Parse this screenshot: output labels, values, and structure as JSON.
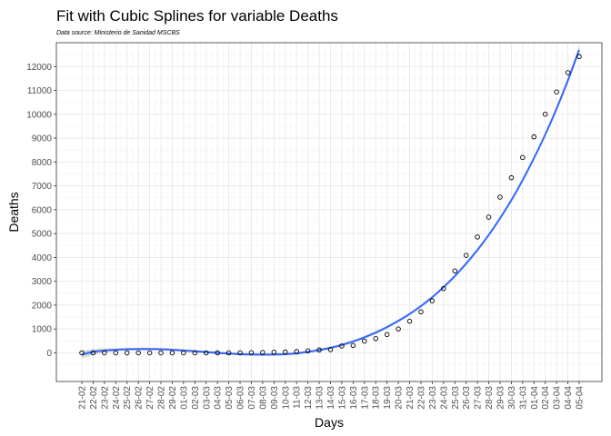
{
  "chart_data": {
    "type": "scatter",
    "title": "Fit with Cubic Splines for variable Deaths",
    "subtitle": "Data source: Ministerio de Sanidad MSCBS",
    "xlabel": "Days",
    "ylabel": "Deaths",
    "grid": true,
    "ylim": [
      -1200,
      13000
    ],
    "yticks": [
      0,
      1000,
      2000,
      3000,
      4000,
      5000,
      6000,
      7000,
      8000,
      9000,
      10000,
      11000,
      12000
    ],
    "categories": [
      "21-02",
      "22-02",
      "23-02",
      "24-02",
      "25-02",
      "26-02",
      "27-02",
      "28-02",
      "29-02",
      "01-03",
      "02-03",
      "03-03",
      "04-03",
      "05-03",
      "06-03",
      "07-03",
      "08-03",
      "09-03",
      "10-03",
      "11-03",
      "12-03",
      "13-03",
      "14-03",
      "15-03",
      "16-03",
      "17-03",
      "18-03",
      "19-03",
      "20-03",
      "21-03",
      "22-03",
      "23-03",
      "24-03",
      "25-03",
      "26-03",
      "27-03",
      "28-03",
      "29-03",
      "30-03",
      "31-03",
      "01-04",
      "02-04",
      "03-04",
      "04-04",
      "05-04"
    ],
    "series": [
      {
        "kind": "points",
        "values": [
          0,
          0,
          0,
          0,
          0,
          0,
          0,
          0,
          0,
          0,
          0,
          1,
          2,
          3,
          5,
          10,
          17,
          28,
          35,
          54,
          84,
          121,
          136,
          288,
          309,
          491,
          598,
          767,
          1002,
          1326,
          1720,
          2182,
          2696,
          3434,
          4089,
          4858,
          5690,
          6528,
          7340,
          8189,
          9053,
          10003,
          10935,
          11744,
          12418
        ]
      },
      {
        "kind": "fit",
        "color": "#3366ff",
        "values": [
          -70,
          40,
          100,
          130,
          150,
          160,
          160,
          150,
          130,
          100,
          70,
          35,
          0,
          -30,
          -55,
          -70,
          -75,
          -70,
          -55,
          -20,
          40,
          120,
          210,
          330,
          480,
          650,
          850,
          1080,
          1340,
          1630,
          1960,
          2330,
          2750,
          3220,
          3740,
          4310,
          4940,
          5640,
          6400,
          7240,
          8160,
          9150,
          10230,
          11420,
          12700
        ]
      }
    ]
  }
}
